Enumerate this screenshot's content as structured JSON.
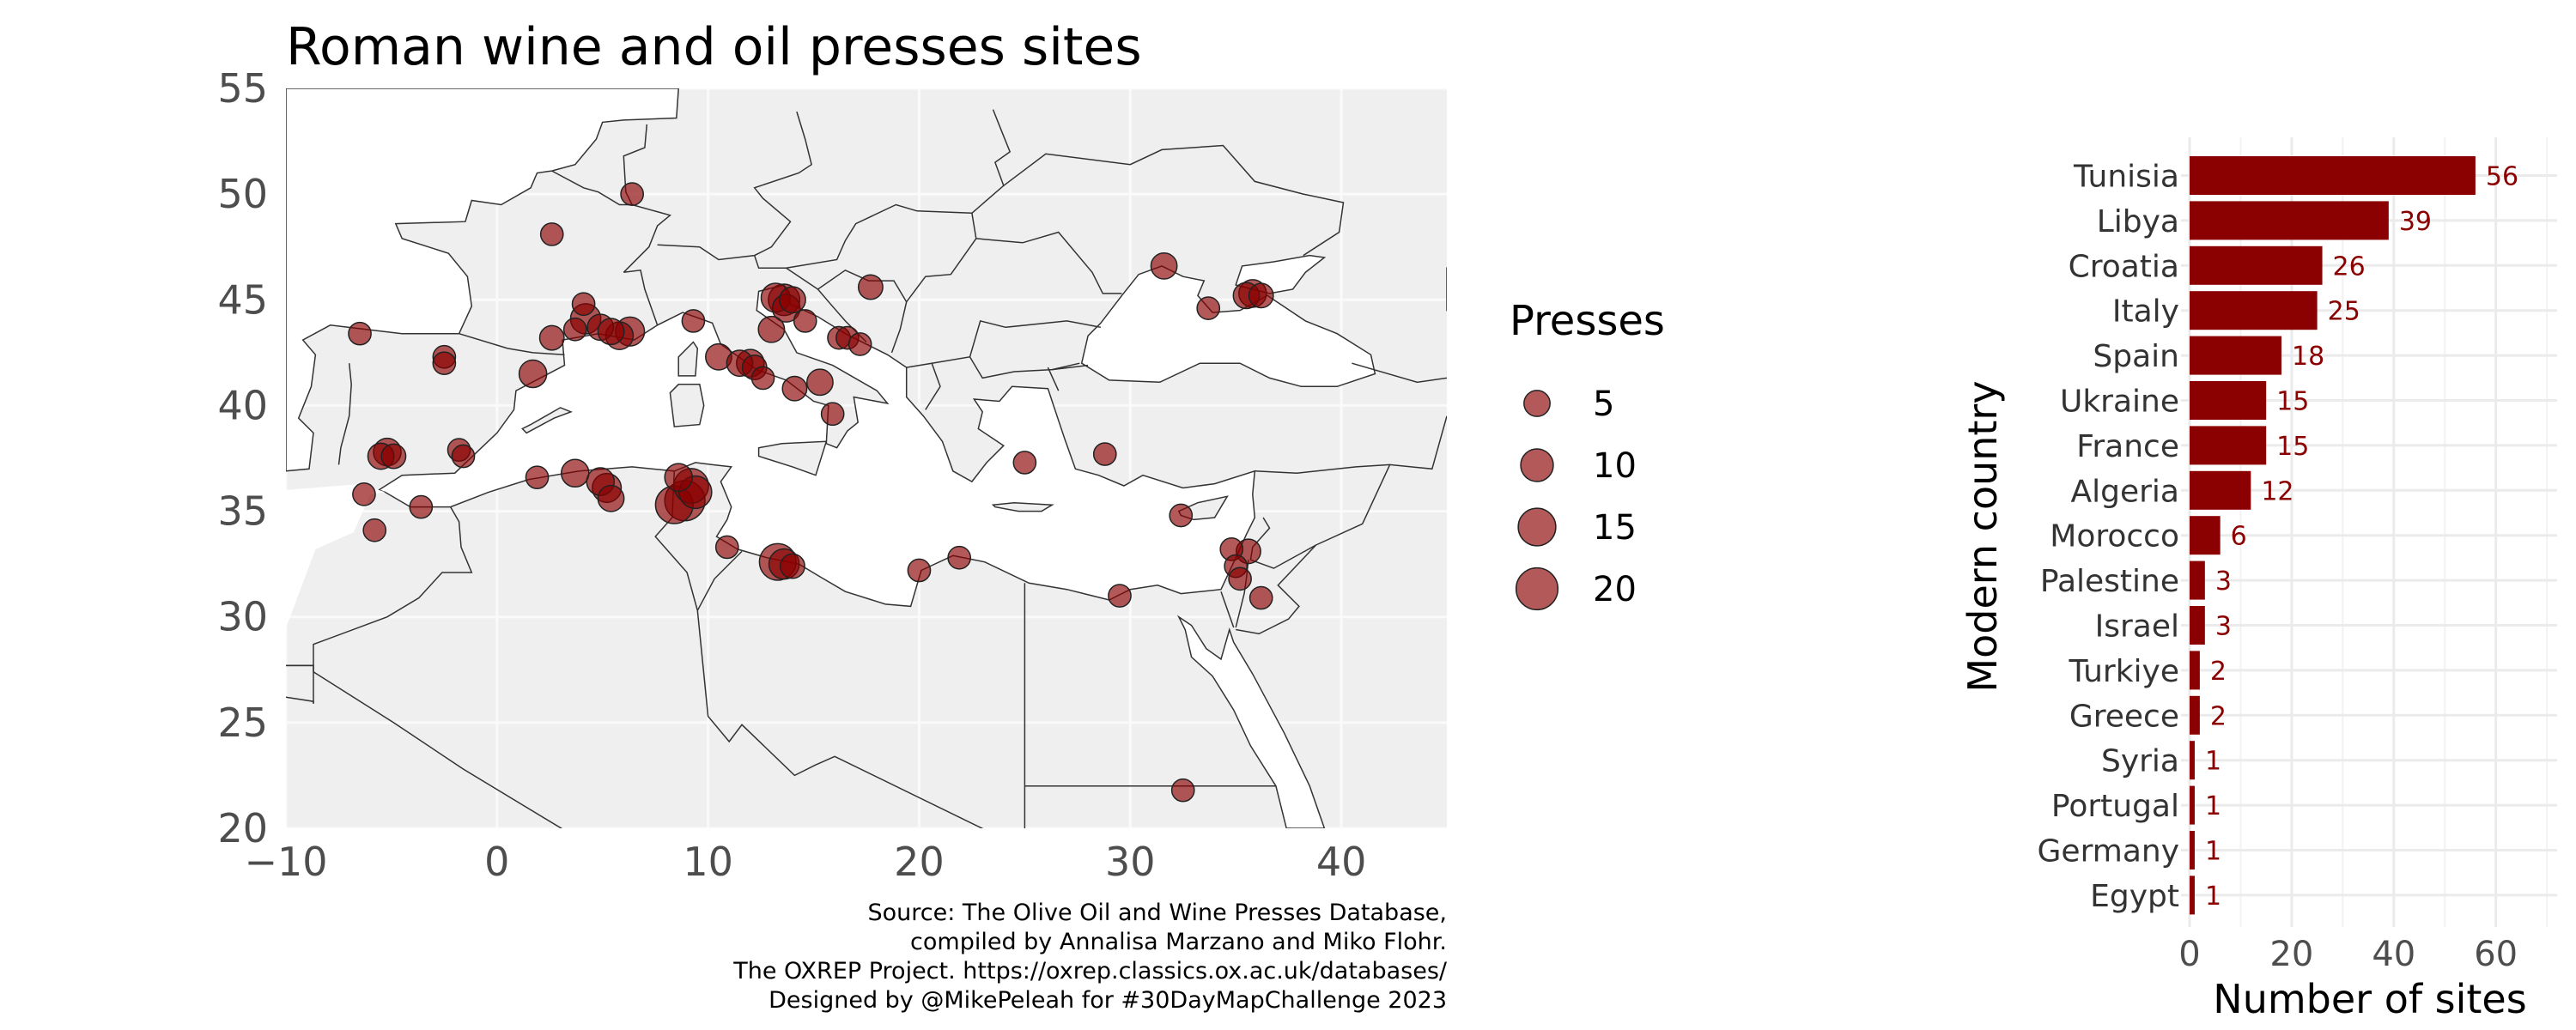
{
  "colors": {
    "land": "#efefef",
    "sea": "#ffffff",
    "border": "#333333",
    "point_fill": "#8b0000",
    "bar_fill": "#8b0000",
    "grid": "#ebebeb"
  },
  "map": {
    "title": "Roman wine and oil presses sites",
    "legend_title": "Presses",
    "caption_lines": [
      "Source: The Olive Oil and Wine Presses Database,",
      "compiled by Annalisa Marzano and Miko Flohr.",
      "The OXREP Project. https://oxrep.classics.ox.ac.uk/databases/",
      "Designed by @MikePeleah for #30DayMapChallenge 2023"
    ]
  },
  "bars": {
    "ylabel": "Modern country",
    "xlabel": "Number of sites"
  },
  "chart_data": [
    {
      "type": "scatter",
      "title": "Roman wine and oil presses sites",
      "xlabel": "",
      "ylabel": "",
      "xlim": [
        -10,
        45
      ],
      "ylim": [
        20,
        55
      ],
      "x_ticks": [
        -10,
        0,
        10,
        20,
        30,
        40
      ],
      "y_ticks": [
        20,
        25,
        30,
        35,
        40,
        45,
        50,
        55
      ],
      "size_legend": {
        "title": "Presses",
        "values": [
          5,
          10,
          15,
          20
        ]
      },
      "points": [
        {
          "x": -6.5,
          "y": 43.4,
          "n": 3
        },
        {
          "x": -2.5,
          "y": 42.3,
          "n": 3
        },
        {
          "x": -2.5,
          "y": 42.0,
          "n": 3
        },
        {
          "x": 1.7,
          "y": 41.5,
          "n": 6
        },
        {
          "x": 2.6,
          "y": 48.1,
          "n": 3
        },
        {
          "x": 2.6,
          "y": 43.2,
          "n": 4
        },
        {
          "x": 3.7,
          "y": 43.6,
          "n": 3
        },
        {
          "x": 4.1,
          "y": 44.8,
          "n": 3
        },
        {
          "x": 4.2,
          "y": 44.1,
          "n": 8
        },
        {
          "x": 4.9,
          "y": 43.7,
          "n": 5
        },
        {
          "x": 5.4,
          "y": 43.5,
          "n": 5
        },
        {
          "x": 5.8,
          "y": 43.3,
          "n": 6
        },
        {
          "x": 6.3,
          "y": 43.5,
          "n": 7
        },
        {
          "x": 6.4,
          "y": 50.0,
          "n": 3
        },
        {
          "x": 9.3,
          "y": 44.0,
          "n": 3
        },
        {
          "x": 10.5,
          "y": 42.3,
          "n": 5
        },
        {
          "x": 11.5,
          "y": 42.0,
          "n": 5
        },
        {
          "x": 12.0,
          "y": 42.0,
          "n": 6
        },
        {
          "x": 12.2,
          "y": 41.8,
          "n": 4
        },
        {
          "x": 12.6,
          "y": 41.3,
          "n": 3
        },
        {
          "x": 13.0,
          "y": 43.6,
          "n": 5
        },
        {
          "x": 13.2,
          "y": 45.1,
          "n": 7
        },
        {
          "x": 13.6,
          "y": 45.0,
          "n": 9
        },
        {
          "x": 13.7,
          "y": 44.6,
          "n": 6
        },
        {
          "x": 14.0,
          "y": 45.0,
          "n": 5
        },
        {
          "x": 14.1,
          "y": 40.8,
          "n": 4
        },
        {
          "x": 14.6,
          "y": 44.0,
          "n": 3
        },
        {
          "x": 15.3,
          "y": 41.1,
          "n": 5
        },
        {
          "x": 15.9,
          "y": 39.6,
          "n": 3
        },
        {
          "x": 16.2,
          "y": 43.2,
          "n": 3
        },
        {
          "x": 16.6,
          "y": 43.2,
          "n": 3
        },
        {
          "x": 17.2,
          "y": 42.9,
          "n": 3
        },
        {
          "x": 17.7,
          "y": 45.6,
          "n": 4
        },
        {
          "x": -5.5,
          "y": 37.6,
          "n": 5
        },
        {
          "x": -5.2,
          "y": 37.8,
          "n": 6
        },
        {
          "x": -4.9,
          "y": 37.6,
          "n": 4
        },
        {
          "x": -6.3,
          "y": 35.8,
          "n": 3
        },
        {
          "x": -5.8,
          "y": 34.1,
          "n": 3
        },
        {
          "x": -3.6,
          "y": 35.2,
          "n": 3
        },
        {
          "x": -1.8,
          "y": 37.9,
          "n": 3
        },
        {
          "x": -1.6,
          "y": 37.6,
          "n": 3
        },
        {
          "x": 1.9,
          "y": 36.6,
          "n": 3
        },
        {
          "x": 3.7,
          "y": 36.8,
          "n": 6
        },
        {
          "x": 4.9,
          "y": 36.4,
          "n": 6
        },
        {
          "x": 5.2,
          "y": 36.1,
          "n": 7
        },
        {
          "x": 5.4,
          "y": 35.6,
          "n": 5
        },
        {
          "x": 8.4,
          "y": 35.3,
          "n": 15
        },
        {
          "x": 8.9,
          "y": 35.5,
          "n": 18
        },
        {
          "x": 9.2,
          "y": 36.2,
          "n": 12
        },
        {
          "x": 9.4,
          "y": 35.9,
          "n": 10
        },
        {
          "x": 8.6,
          "y": 36.6,
          "n": 6
        },
        {
          "x": 10.9,
          "y": 33.3,
          "n": 3
        },
        {
          "x": 13.3,
          "y": 32.6,
          "n": 14
        },
        {
          "x": 13.6,
          "y": 32.5,
          "n": 8
        },
        {
          "x": 14.0,
          "y": 32.4,
          "n": 4
        },
        {
          "x": 20.0,
          "y": 32.2,
          "n": 3
        },
        {
          "x": 21.9,
          "y": 32.8,
          "n": 3
        },
        {
          "x": 25.0,
          "y": 37.3,
          "n": 3
        },
        {
          "x": 28.8,
          "y": 37.7,
          "n": 3
        },
        {
          "x": 29.5,
          "y": 31.0,
          "n": 3
        },
        {
          "x": 32.4,
          "y": 34.8,
          "n": 3
        },
        {
          "x": 31.6,
          "y": 46.6,
          "n": 5
        },
        {
          "x": 33.7,
          "y": 44.6,
          "n": 3
        },
        {
          "x": 35.5,
          "y": 45.2,
          "n": 5
        },
        {
          "x": 35.8,
          "y": 45.3,
          "n": 6
        },
        {
          "x": 36.2,
          "y": 45.2,
          "n": 4
        },
        {
          "x": 34.8,
          "y": 33.2,
          "n": 3
        },
        {
          "x": 35.0,
          "y": 32.4,
          "n": 3
        },
        {
          "x": 35.2,
          "y": 31.8,
          "n": 3
        },
        {
          "x": 35.6,
          "y": 33.1,
          "n": 4
        },
        {
          "x": 36.2,
          "y": 30.9,
          "n": 3
        },
        {
          "x": 32.5,
          "y": 21.8,
          "n": 3
        }
      ]
    },
    {
      "type": "bar",
      "orientation": "horizontal",
      "xlabel": "Number of sites",
      "ylabel": "Modern country",
      "xlim": [
        0,
        72
      ],
      "x_ticks": [
        0,
        20,
        40,
        60
      ],
      "categories": [
        "Tunisia",
        "Libya",
        "Croatia",
        "Italy",
        "Spain",
        "Ukraine",
        "France",
        "Algeria",
        "Morocco",
        "Palestine",
        "Israel",
        "Turkiye",
        "Greece",
        "Syria",
        "Portugal",
        "Germany",
        "Egypt"
      ],
      "values": [
        56,
        39,
        26,
        25,
        18,
        15,
        15,
        12,
        6,
        3,
        3,
        2,
        2,
        1,
        1,
        1,
        1
      ],
      "data_labels": [
        "56",
        "39",
        "26",
        "25",
        "18",
        "15",
        "15",
        "12",
        "6",
        "3",
        "3",
        "2",
        "2",
        "1",
        "1",
        "1",
        "1"
      ]
    }
  ]
}
